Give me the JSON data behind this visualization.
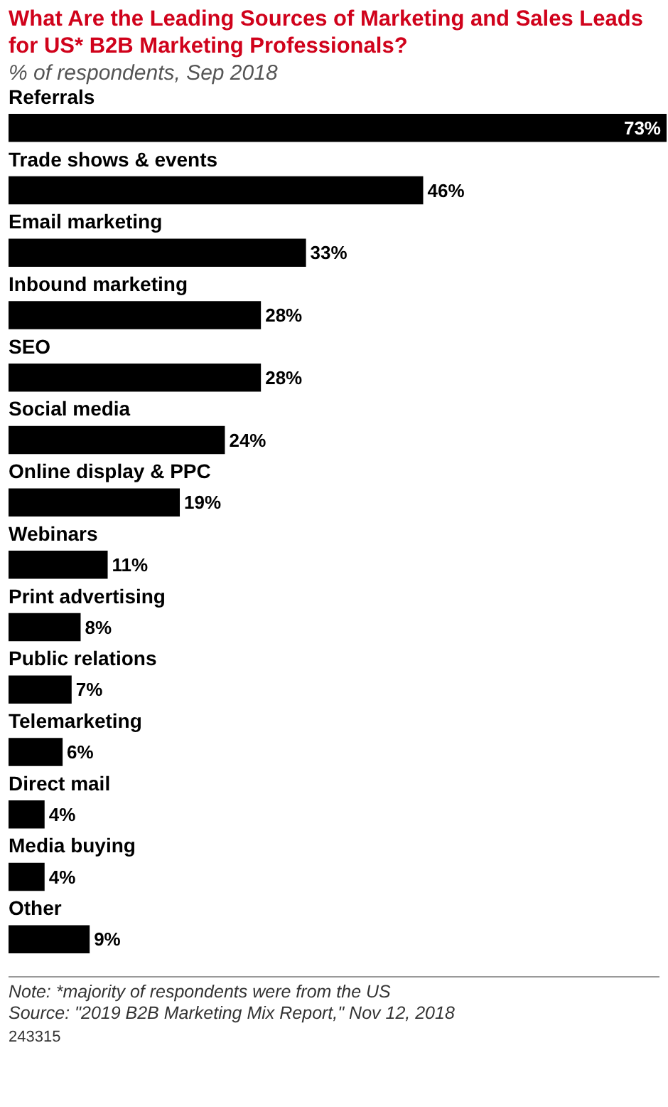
{
  "chart_data": {
    "type": "bar",
    "orientation": "horizontal",
    "title": "What Are the Leading Sources of Marketing and Sales Leads for US* B2B Marketing Professionals?",
    "subtitle": "% of respondents, Sep 2018",
    "categories": [
      "Referrals",
      "Trade shows & events",
      "Email marketing",
      "Inbound marketing",
      "SEO",
      "Social media",
      "Online display & PPC",
      "Webinars",
      "Print advertising",
      "Public relations",
      "Telemarketing",
      "Direct mail",
      "Media buying",
      "Other"
    ],
    "values": [
      73,
      46,
      33,
      28,
      28,
      24,
      19,
      11,
      8,
      7,
      6,
      4,
      4,
      9
    ],
    "value_labels": [
      "73%",
      "46%",
      "33%",
      "28%",
      "28%",
      "24%",
      "19%",
      "11%",
      "8%",
      "7%",
      "6%",
      "4%",
      "4%",
      "9%"
    ],
    "color": "#000000",
    "annotations": [
      "Note: *majority of respondents were from the US",
      "Source: \"2019 B2B Marketing Mix Report,\" Nov 12, 2018",
      "243315"
    ]
  }
}
